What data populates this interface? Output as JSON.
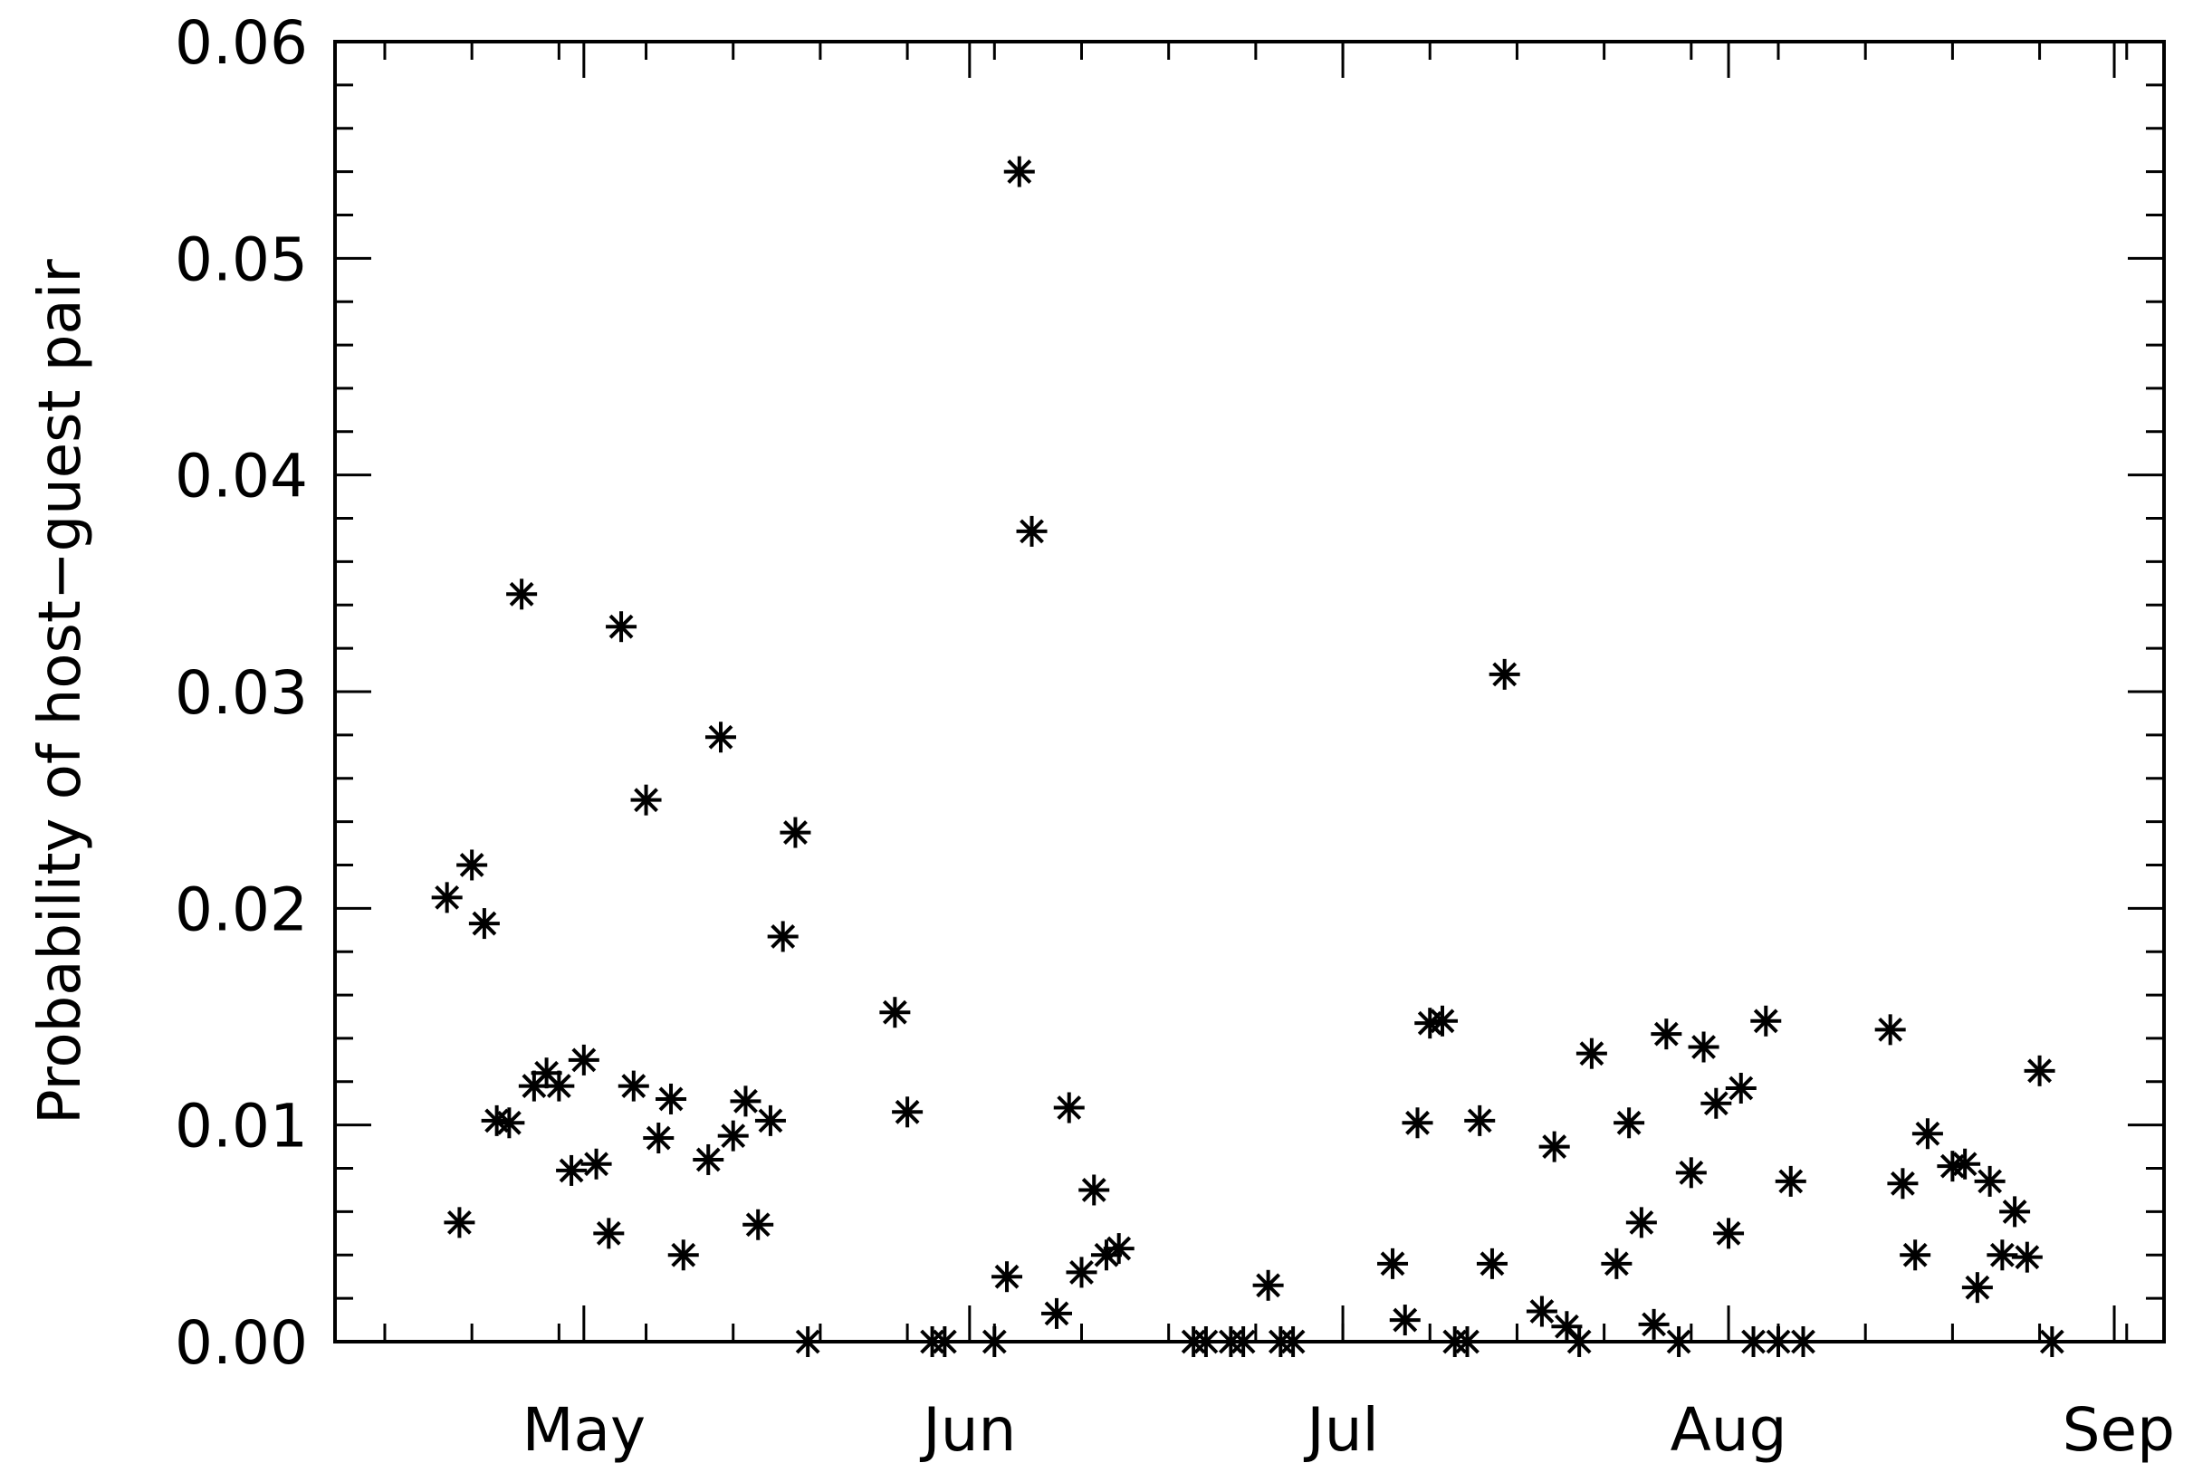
{
  "chart_data": {
    "type": "scatter",
    "marker": "asterisk",
    "marker_color": "#000000",
    "title": "",
    "xlabel": "",
    "ylabel": "Probability of host−guest pair",
    "xlim": [
      "2012-04-11",
      "2012-09-05"
    ],
    "ylim": [
      0.0,
      0.06
    ],
    "grid": false,
    "x_ticks": [
      {
        "date": "2012-05-01",
        "label": "May"
      },
      {
        "date": "2012-06-01",
        "label": "Jun"
      },
      {
        "date": "2012-07-01",
        "label": "Jul"
      },
      {
        "date": "2012-08-01",
        "label": "Aug"
      },
      {
        "date": "2012-09-01",
        "label": "Sep"
      }
    ],
    "y_ticks": [
      {
        "value": 0.0,
        "label": "0.00"
      },
      {
        "value": 0.01,
        "label": "0.01"
      },
      {
        "value": 0.02,
        "label": "0.02"
      },
      {
        "value": 0.03,
        "label": "0.03"
      },
      {
        "value": 0.04,
        "label": "0.04"
      },
      {
        "value": 0.05,
        "label": "0.05"
      },
      {
        "value": 0.06,
        "label": "0.06"
      }
    ],
    "points": [
      [
        "2012-04-20",
        0.0205
      ],
      [
        "2012-04-21",
        0.0055
      ],
      [
        "2012-04-22",
        0.022
      ],
      [
        "2012-04-23",
        0.0193
      ],
      [
        "2012-04-24",
        0.0102
      ],
      [
        "2012-04-25",
        0.0101
      ],
      [
        "2012-04-26",
        0.0345
      ],
      [
        "2012-04-27",
        0.0118
      ],
      [
        "2012-04-28",
        0.0124
      ],
      [
        "2012-04-29",
        0.0118
      ],
      [
        "2012-04-30",
        0.0079
      ],
      [
        "2012-05-01",
        0.013
      ],
      [
        "2012-05-02",
        0.0082
      ],
      [
        "2012-05-03",
        0.005
      ],
      [
        "2012-05-04",
        0.033
      ],
      [
        "2012-05-05",
        0.0118
      ],
      [
        "2012-05-06",
        0.025
      ],
      [
        "2012-05-07",
        0.0094
      ],
      [
        "2012-05-08",
        0.0112
      ],
      [
        "2012-05-09",
        0.004
      ],
      [
        "2012-05-11",
        0.0084
      ],
      [
        "2012-05-12",
        0.0279
      ],
      [
        "2012-05-13",
        0.0095
      ],
      [
        "2012-05-14",
        0.0111
      ],
      [
        "2012-05-15",
        0.0054
      ],
      [
        "2012-05-16",
        0.0102
      ],
      [
        "2012-05-17",
        0.0187
      ],
      [
        "2012-05-18",
        0.0235
      ],
      [
        "2012-05-19",
        0.0
      ],
      [
        "2012-05-26",
        0.0152
      ],
      [
        "2012-05-27",
        0.0106
      ],
      [
        "2012-05-29",
        0.0
      ],
      [
        "2012-05-30",
        0.0
      ],
      [
        "2012-06-03",
        0.0
      ],
      [
        "2012-06-04",
        0.003
      ],
      [
        "2012-06-05",
        0.054
      ],
      [
        "2012-06-06",
        0.0374
      ],
      [
        "2012-06-08",
        0.0013
      ],
      [
        "2012-06-09",
        0.0108
      ],
      [
        "2012-06-10",
        0.0032
      ],
      [
        "2012-06-11",
        0.007
      ],
      [
        "2012-06-12",
        0.004
      ],
      [
        "2012-06-13",
        0.0043
      ],
      [
        "2012-06-19",
        0.0
      ],
      [
        "2012-06-20",
        0.0
      ],
      [
        "2012-06-22",
        0.0
      ],
      [
        "2012-06-23",
        0.0
      ],
      [
        "2012-06-25",
        0.0026
      ],
      [
        "2012-06-26",
        0.0
      ],
      [
        "2012-06-27",
        0.0
      ],
      [
        "2012-07-05",
        0.0036
      ],
      [
        "2012-07-06",
        0.001
      ],
      [
        "2012-07-07",
        0.0101
      ],
      [
        "2012-07-08",
        0.0147
      ],
      [
        "2012-07-09",
        0.0148
      ],
      [
        "2012-07-10",
        0.0
      ],
      [
        "2012-07-11",
        0.0
      ],
      [
        "2012-07-12",
        0.0102
      ],
      [
        "2012-07-13",
        0.0036
      ],
      [
        "2012-07-14",
        0.0308
      ],
      [
        "2012-07-17",
        0.0014
      ],
      [
        "2012-07-18",
        0.009
      ],
      [
        "2012-07-19",
        0.0007
      ],
      [
        "2012-07-20",
        0.0
      ],
      [
        "2012-07-21",
        0.0133
      ],
      [
        "2012-07-23",
        0.0036
      ],
      [
        "2012-07-24",
        0.0101
      ],
      [
        "2012-07-25",
        0.0055
      ],
      [
        "2012-07-26",
        0.0008
      ],
      [
        "2012-07-27",
        0.0142
      ],
      [
        "2012-07-28",
        0.0
      ],
      [
        "2012-07-29",
        0.0078
      ],
      [
        "2012-07-30",
        0.0136
      ],
      [
        "2012-07-31",
        0.011
      ],
      [
        "2012-08-01",
        0.005
      ],
      [
        "2012-08-02",
        0.0117
      ],
      [
        "2012-08-03",
        0.0
      ],
      [
        "2012-08-04",
        0.0148
      ],
      [
        "2012-08-05",
        0.0
      ],
      [
        "2012-08-06",
        0.0074
      ],
      [
        "2012-08-07",
        0.0
      ],
      [
        "2012-08-14",
        0.0144
      ],
      [
        "2012-08-15",
        0.0073
      ],
      [
        "2012-08-16",
        0.004
      ],
      [
        "2012-08-17",
        0.0096
      ],
      [
        "2012-08-19",
        0.0081
      ],
      [
        "2012-08-20",
        0.0082
      ],
      [
        "2012-08-21",
        0.0025
      ],
      [
        "2012-08-22",
        0.0074
      ],
      [
        "2012-08-23",
        0.004
      ],
      [
        "2012-08-24",
        0.006
      ],
      [
        "2012-08-25",
        0.0039
      ],
      [
        "2012-08-26",
        0.0125
      ],
      [
        "2012-08-27",
        0.0
      ]
    ]
  }
}
